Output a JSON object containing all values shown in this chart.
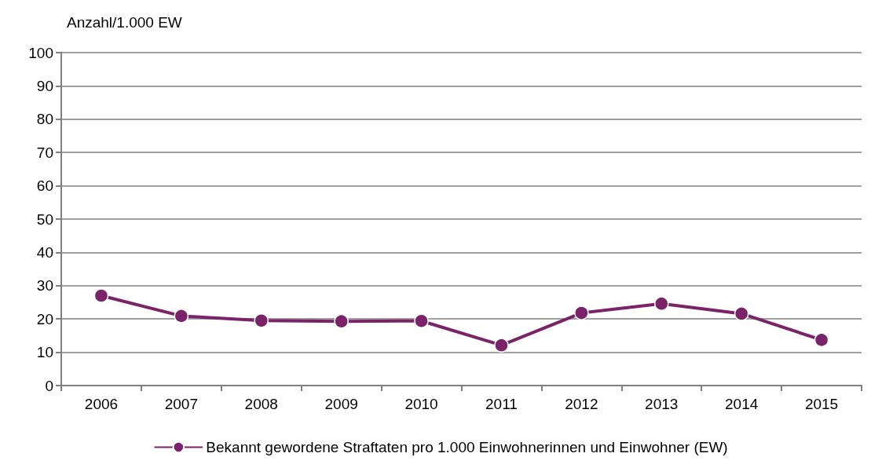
{
  "chart_data": {
    "type": "line",
    "ylabel": "Anzahl/1.000 EW",
    "categories": [
      "2006",
      "2007",
      "2008",
      "2009",
      "2010",
      "2011",
      "2012",
      "2013",
      "2014",
      "2015"
    ],
    "series": [
      {
        "name": "Bekannt gewordene Straftaten pro 1.000 Einwohnerinnen und Einwohner (EW)",
        "color": "#7b2369",
        "values": [
          27.0,
          20.9,
          19.5,
          19.3,
          19.4,
          12.1,
          21.8,
          24.6,
          21.6,
          13.7
        ]
      }
    ],
    "ylim": [
      0,
      100
    ],
    "yticks": [
      0,
      10,
      20,
      30,
      40,
      50,
      60,
      70,
      80,
      90,
      100
    ],
    "grid": "y",
    "legend": "bottom",
    "marker": "circle",
    "line_style": "solid"
  }
}
